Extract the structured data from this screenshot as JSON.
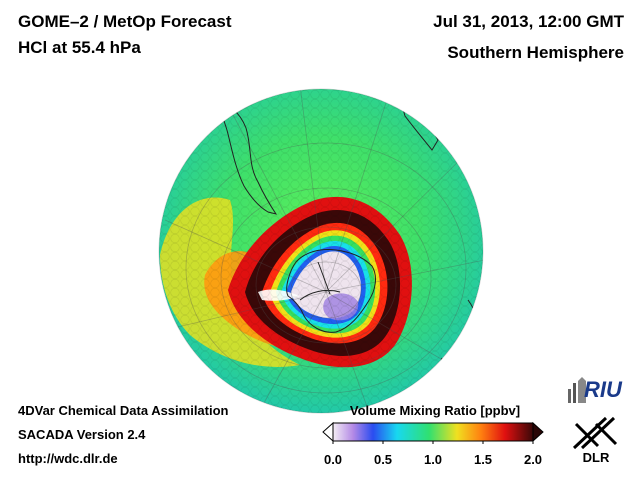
{
  "header": {
    "title_line1": "GOME–2 / MetOp Forecast",
    "title_line2": "HCl at 55.4 hPa",
    "date": "Jul 31, 2013, 12:00 GMT",
    "region": "Southern Hemisphere"
  },
  "footer": {
    "line1": "4DVar Chemical Data Assimilation",
    "line2": "SACADA Version 2.4",
    "line3": "http://wdc.dlr.de"
  },
  "colorbar": {
    "title": "Volume Mixing Ratio [ppbv]",
    "min": 0.0,
    "max": 2.0,
    "ticks": [
      "0.0",
      "0.5",
      "1.0",
      "1.5",
      "2.0"
    ]
  },
  "logos": {
    "riu": "RIU",
    "dlr": "DLR"
  },
  "colors": {
    "background": "#ffffff",
    "globe_base": "#38e070",
    "low_vmr": "#f0e6f0",
    "high_vmr": "#d40000",
    "ring_dark": "#3a0808"
  }
}
